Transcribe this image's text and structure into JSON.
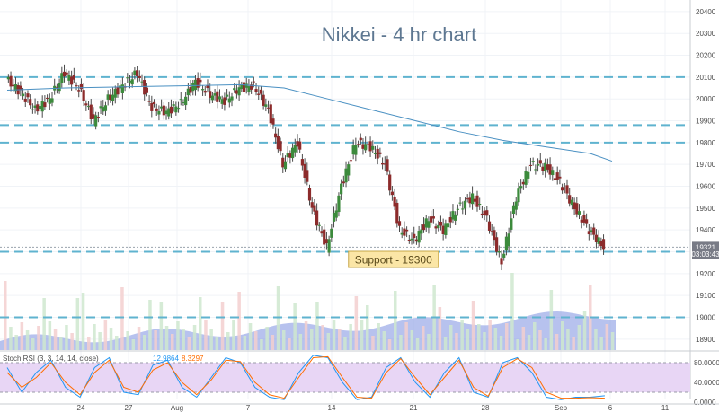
{
  "chart_data": {
    "type": "candlestick",
    "title": "Nikkei - 4 hr chart",
    "y_axis": {
      "ticks": [
        18900,
        19000,
        19100,
        19200,
        19300,
        19400,
        19500,
        19600,
        19700,
        19800,
        19900,
        20000,
        20100,
        20200,
        20300,
        20400
      ],
      "range": [
        18850,
        20420
      ],
      "side": "right"
    },
    "x_axis": {
      "ticks": [
        "24",
        "27",
        "Aug",
        "7",
        "14",
        "21",
        "28",
        "Sep",
        "6",
        "11"
      ],
      "range_days": [
        "2017-07-19",
        "2017-09-12"
      ]
    },
    "price_badges": [
      {
        "label": "19321",
        "value": 19321,
        "color": "#787b86"
      },
      {
        "label": "03:03:43",
        "value": 19290,
        "color": "#787b86"
      }
    ],
    "horizontal_levels": [
      20100,
      19880,
      19800,
      19300,
      19000
    ],
    "annotations": [
      {
        "text": "Support - 19300",
        "value": 19265,
        "day_offset": 26.5
      }
    ],
    "moving_average": {
      "color": "#4a90c2",
      "points": [
        [
          0,
          20040
        ],
        [
          4,
          20050
        ],
        [
          8,
          20055
        ],
        [
          12,
          20060
        ],
        [
          16,
          20065
        ],
        [
          19,
          20050
        ],
        [
          22,
          20000
        ],
        [
          25,
          19950
        ],
        [
          28,
          19900
        ],
        [
          31,
          19850
        ],
        [
          34,
          19810
        ],
        [
          37,
          19780
        ],
        [
          40,
          19750
        ],
        [
          41.5,
          19715
        ]
      ]
    },
    "candles_close_path": [
      [
        0,
        20090
      ],
      [
        1,
        20030
      ],
      [
        2,
        19950
      ],
      [
        3,
        20000
      ],
      [
        4,
        20120
      ],
      [
        5,
        20050
      ],
      [
        6,
        19900
      ],
      [
        7,
        20000
      ],
      [
        8,
        20060
      ],
      [
        9,
        20120
      ],
      [
        10,
        19960
      ],
      [
        11,
        19940
      ],
      [
        12,
        19980
      ],
      [
        13,
        20080
      ],
      [
        14,
        20020
      ],
      [
        15,
        19990
      ],
      [
        16,
        20050
      ],
      [
        17,
        20060
      ],
      [
        18,
        19950
      ],
      [
        19,
        19700
      ],
      [
        20,
        19800
      ],
      [
        21,
        19500
      ],
      [
        22,
        19320
      ],
      [
        23,
        19600
      ],
      [
        24,
        19800
      ],
      [
        25,
        19780
      ],
      [
        26,
        19700
      ],
      [
        27,
        19400
      ],
      [
        28,
        19350
      ],
      [
        29,
        19450
      ],
      [
        30,
        19400
      ],
      [
        31,
        19500
      ],
      [
        32,
        19550
      ],
      [
        33,
        19450
      ],
      [
        34,
        19250
      ],
      [
        35,
        19550
      ],
      [
        36,
        19700
      ],
      [
        37,
        19690
      ],
      [
        38,
        19620
      ],
      [
        39,
        19500
      ],
      [
        40,
        19400
      ],
      [
        41,
        19321
      ]
    ],
    "volume_baseline": "area",
    "stoch_rsi": {
      "label": "Stoch RSI (3, 3, 14, 14, close)",
      "k_value": "12.9864",
      "d_value": "8.3297",
      "k_color": "#2196f3",
      "d_color": "#ff6d00",
      "levels": [
        "80.0000",
        "40.0000",
        "0.0000"
      ],
      "bands": [
        20,
        80
      ],
      "k_path": [
        [
          0,
          70
        ],
        [
          1,
          20
        ],
        [
          2,
          60
        ],
        [
          3,
          85
        ],
        [
          4,
          30
        ],
        [
          5,
          10
        ],
        [
          6,
          70
        ],
        [
          7,
          90
        ],
        [
          8,
          20
        ],
        [
          9,
          15
        ],
        [
          10,
          75
        ],
        [
          11,
          85
        ],
        [
          12,
          30
        ],
        [
          13,
          10
        ],
        [
          14,
          50
        ],
        [
          15,
          90
        ],
        [
          16,
          80
        ],
        [
          17,
          30
        ],
        [
          18,
          10
        ],
        [
          19,
          5
        ],
        [
          20,
          60
        ],
        [
          21,
          95
        ],
        [
          22,
          90
        ],
        [
          23,
          40
        ],
        [
          24,
          5
        ],
        [
          25,
          10
        ],
        [
          26,
          70
        ],
        [
          27,
          90
        ],
        [
          28,
          40
        ],
        [
          29,
          10
        ],
        [
          30,
          60
        ],
        [
          31,
          90
        ],
        [
          32,
          20
        ],
        [
          33,
          10
        ],
        [
          34,
          80
        ],
        [
          35,
          90
        ],
        [
          36,
          60
        ],
        [
          37,
          10
        ],
        [
          38,
          5
        ],
        [
          39,
          10
        ],
        [
          40,
          10
        ],
        [
          41,
          13
        ]
      ],
      "d_path": [
        [
          0,
          60
        ],
        [
          1,
          30
        ],
        [
          2,
          50
        ],
        [
          3,
          80
        ],
        [
          4,
          40
        ],
        [
          5,
          15
        ],
        [
          6,
          60
        ],
        [
          7,
          85
        ],
        [
          8,
          30
        ],
        [
          9,
          20
        ],
        [
          10,
          65
        ],
        [
          11,
          80
        ],
        [
          12,
          40
        ],
        [
          13,
          15
        ],
        [
          14,
          45
        ],
        [
          15,
          85
        ],
        [
          16,
          82
        ],
        [
          17,
          40
        ],
        [
          18,
          15
        ],
        [
          19,
          8
        ],
        [
          20,
          50
        ],
        [
          21,
          90
        ],
        [
          22,
          92
        ],
        [
          23,
          50
        ],
        [
          24,
          10
        ],
        [
          25,
          8
        ],
        [
          26,
          60
        ],
        [
          27,
          88
        ],
        [
          28,
          50
        ],
        [
          29,
          15
        ],
        [
          30,
          50
        ],
        [
          31,
          85
        ],
        [
          32,
          30
        ],
        [
          33,
          12
        ],
        [
          34,
          70
        ],
        [
          35,
          88
        ],
        [
          36,
          70
        ],
        [
          37,
          20
        ],
        [
          38,
          8
        ],
        [
          39,
          8
        ],
        [
          40,
          9
        ],
        [
          41,
          8
        ]
      ]
    }
  }
}
